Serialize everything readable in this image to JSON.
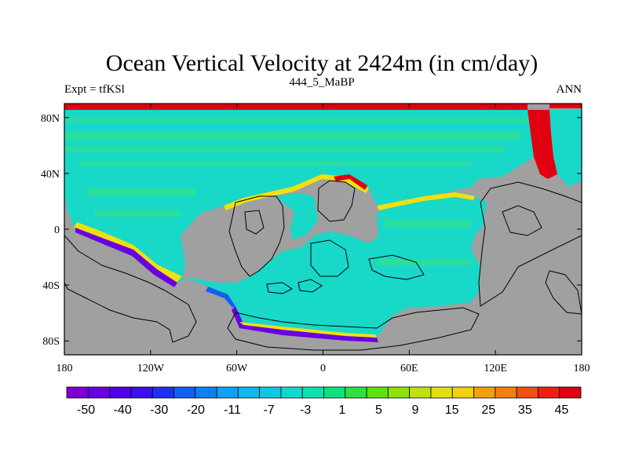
{
  "chart_data": {
    "type": "heatmap",
    "title": "Ocean Vertical Velocity at 2424m (in cm/day)",
    "left_label": "Expt = tfKSl",
    "center_label": "444_5_MaBP",
    "right_label": "ANN",
    "xlim": [
      -180,
      180
    ],
    "ylim": [
      -90,
      90
    ],
    "x_ticks": [
      {
        "value": -180,
        "label": "180"
      },
      {
        "value": -120,
        "label": "120W"
      },
      {
        "value": -60,
        "label": "60W"
      },
      {
        "value": 0,
        "label": "0"
      },
      {
        "value": 60,
        "label": "60E"
      },
      {
        "value": 120,
        "label": "120E"
      },
      {
        "value": 180,
        "label": "180"
      }
    ],
    "y_ticks": [
      {
        "value": 80,
        "label": "80N"
      },
      {
        "value": 40,
        "label": "40N"
      },
      {
        "value": 0,
        "label": "0"
      },
      {
        "value": -40,
        "label": "40S"
      },
      {
        "value": -80,
        "label": "80S"
      }
    ],
    "colorbar": {
      "colors": [
        "#8000d0",
        "#6a00e0",
        "#5000e8",
        "#3a10f0",
        "#2030f0",
        "#1060f0",
        "#1080f0",
        "#10a0f0",
        "#10b8f0",
        "#10c8e0",
        "#10d8d0",
        "#10e0b0",
        "#10e080",
        "#30e040",
        "#60e010",
        "#90e010",
        "#c0e010",
        "#e0e010",
        "#f0d010",
        "#f0a010",
        "#f08010",
        "#f05010",
        "#f02010",
        "#e00010"
      ],
      "labels": [
        "-50",
        "-40",
        "-30",
        "-20",
        "-11",
        "-7",
        "-3",
        "1",
        "5",
        "9",
        "15",
        "25",
        "35",
        "45"
      ]
    },
    "colors": {
      "land": "#a0a0a0",
      "ocean": "#18d8c8",
      "ocean_band": "#30e090",
      "coast_positive": "#f0e010",
      "coast_strong": "#e00010",
      "coast_negative": "#6a00e0",
      "coast_blue": "#1060f0"
    }
  }
}
